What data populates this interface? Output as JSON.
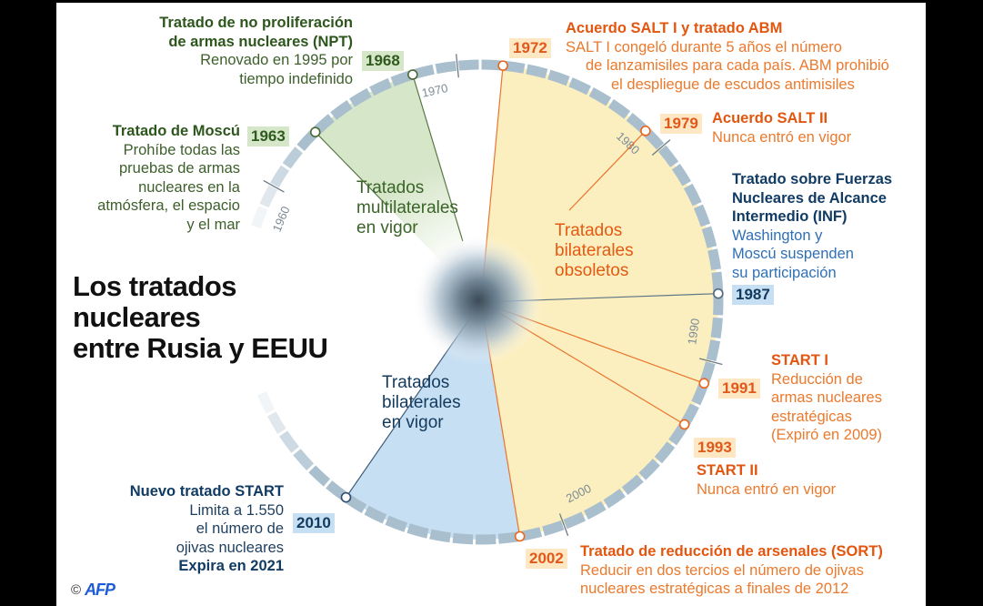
{
  "title": [
    "Los tratados",
    "nucleares",
    "entre Rusia y EEUU"
  ],
  "credit": {
    "symbol": "©",
    "logo": "AFP"
  },
  "colors": {
    "green": "#d6e6c9",
    "yellow": "#fcefbf",
    "blue": "#c6dff3",
    "ring": "#a9bfce",
    "orange": "#e8671e",
    "navy": "#123a5e"
  },
  "ring": {
    "start_year": 1958,
    "end_year": 2016,
    "decade_labels": [
      "1960",
      "1970",
      "1980",
      "1990",
      "2000"
    ]
  },
  "sectors": [
    {
      "from": 1963,
      "to": 1968,
      "color": "#d6e6c9",
      "label": [
        "Tratados",
        "multilaterales",
        "en vigor"
      ]
    },
    {
      "from": 1972,
      "to": 2002,
      "color": "#fcefbf",
      "label": [
        "Tratados",
        "bilaterales",
        "obsoletos"
      ]
    },
    {
      "from": 2002,
      "to": 2010,
      "color": "#c6dff3",
      "label": [
        "Tratados",
        "bilaterales",
        "en vigor"
      ]
    }
  ],
  "events": [
    {
      "year": "1963",
      "color": "#4a6b35",
      "title": [
        "Tratado de Moscú"
      ],
      "body": [
        "Prohíbe todas las",
        "pruebas de armas",
        "nucleares en la",
        "atmósfera, el espacio",
        "y el mar"
      ]
    },
    {
      "year": "1968",
      "color": "#4a6b35",
      "title": [
        "Tratado de no proliferación",
        "de armas nucleares (NPT)"
      ],
      "body": [
        "Renovado en 1995 por",
        "tiempo indefinido"
      ]
    },
    {
      "year": "1972",
      "color": "#e8671e",
      "title": [
        "Acuerdo SALT I y tratado ABM"
      ],
      "body": [
        "SALT I congeló durante 5 años el número",
        "de lanzamisiles para cada país. ABM prohibió",
        "el despliegue de escudos antimisiles"
      ]
    },
    {
      "year": "1979",
      "color": "#e8671e",
      "title": [
        "Acuerdo  SALT II"
      ],
      "body": [
        "Nunca entró en vigor"
      ]
    },
    {
      "year": "1987",
      "color": "#4f6a80",
      "title": [
        "Tratado sobre Fuerzas",
        "Nucleares de Alcance",
        "Intermedio  (INF)"
      ],
      "body": [
        "Washington y",
        "Moscú suspenden",
        "su participación"
      ]
    },
    {
      "year": "1991",
      "color": "#e8671e",
      "title": [
        "START I"
      ],
      "body": [
        "Reducción de",
        "armas nucleares",
        "estratégicas",
        "(Expiró en 2009)"
      ]
    },
    {
      "year": "1993",
      "color": "#e8671e",
      "title": [
        "START II"
      ],
      "body": [
        "Nunca entró en vigor"
      ]
    },
    {
      "year": "2002",
      "color": "#e8671e",
      "title": [
        "Tratado de reducción de arsenales (SORT)"
      ],
      "body": [
        "Reducir en dos tercios el número de ojivas",
        "nucleares estratégicas a finales de 2012"
      ]
    },
    {
      "year": "2010",
      "color": "#2c4d6e",
      "title": [
        "Nuevo tratado START"
      ],
      "body": [
        "Limita a 1.550",
        "el número de",
        "ojivas nucleares"
      ],
      "note": "Expira en 2021"
    }
  ]
}
